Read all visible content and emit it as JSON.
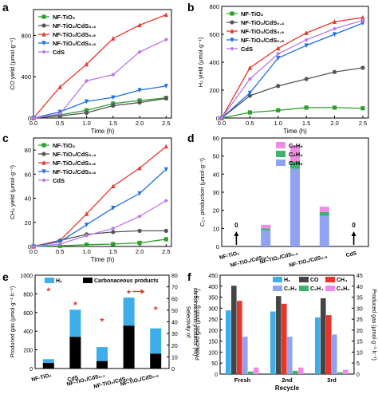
{
  "chart_data": [
    {
      "panel": "a",
      "type": "line",
      "xlabel": "Time (h)",
      "ylabel": "CO yield (μmol·g⁻¹)",
      "xlim": [
        0,
        2.6
      ],
      "ylim": [
        0,
        1050
      ],
      "xticks": [
        "0.0",
        "0.5",
        "1.0",
        "1.5",
        "2.0",
        "2.5"
      ],
      "yticks": [
        "0",
        "400",
        "800"
      ],
      "legend_position": "top-left",
      "x": [
        0,
        0.5,
        1.0,
        1.5,
        2.0,
        2.5
      ],
      "series": [
        {
          "name": "NF-TiO₂",
          "color": "#2ca02c",
          "values": [
            0,
            30,
            75,
            140,
            170,
            195
          ]
        },
        {
          "name": "NF-TiO₂/CdS₀.₄",
          "color": "#555555",
          "values": [
            0,
            20,
            50,
            120,
            150,
            190
          ]
        },
        {
          "name": "NF-TiO₂/CdS₀.₆",
          "color": "#e8352b",
          "values": [
            0,
            300,
            520,
            770,
            900,
            1000
          ]
        },
        {
          "name": "NF-TiO₂/CdS₀.₈",
          "color": "#1f6fe0",
          "values": [
            0,
            60,
            160,
            200,
            270,
            310
          ]
        },
        {
          "name": "CdS",
          "color": "#b77ae8",
          "values": [
            0,
            40,
            360,
            420,
            640,
            760
          ]
        }
      ]
    },
    {
      "panel": "b",
      "type": "line",
      "xlabel": "Time (h)",
      "ylabel": "H₂ yield (μmol·g⁻¹)",
      "xlim": [
        0,
        2.6
      ],
      "ylim": [
        0,
        800
      ],
      "xticks": [
        "0.0",
        "0.5",
        "1.0",
        "1.5",
        "2.0",
        "2.5"
      ],
      "yticks": [
        "0",
        "200",
        "400",
        "600",
        "800"
      ],
      "legend_position": "top-left",
      "x": [
        0,
        0.5,
        1.0,
        1.5,
        2.0,
        2.5
      ],
      "series": [
        {
          "name": "NF-TiO₂",
          "color": "#2ca02c",
          "values": [
            0,
            40,
            55,
            75,
            75,
            70
          ]
        },
        {
          "name": "NF-TiO₂/CdS₀.₄",
          "color": "#555555",
          "values": [
            0,
            160,
            230,
            280,
            330,
            360
          ]
        },
        {
          "name": "NF-TiO₂/CdS₀.₆",
          "color": "#e8352b",
          "values": [
            0,
            360,
            500,
            610,
            690,
            720
          ]
        },
        {
          "name": "NF-TiO₂/CdS₀.₈",
          "color": "#1f6fe0",
          "values": [
            0,
            180,
            430,
            520,
            600,
            680
          ]
        },
        {
          "name": "CdS",
          "color": "#b77ae8",
          "values": [
            0,
            280,
            460,
            560,
            640,
            700
          ]
        }
      ]
    },
    {
      "panel": "c",
      "type": "line",
      "xlabel": "Time (h)",
      "ylabel": "CH₄ yield (μmol·g⁻¹)",
      "xlim": [
        0,
        2.6
      ],
      "ylim": [
        0,
        90
      ],
      "xticks": [
        "0.0",
        "0.5",
        "1.0",
        "1.5",
        "2.0",
        "2.5"
      ],
      "yticks": [
        "0",
        "20",
        "40",
        "60",
        "80"
      ],
      "legend_position": "top-left",
      "x": [
        0,
        0.5,
        1.0,
        1.5,
        2.0,
        2.5
      ],
      "series": [
        {
          "name": "NF-TiO₂",
          "color": "#2ca02c",
          "values": [
            0,
            0.5,
            1.5,
            2,
            3,
            6
          ]
        },
        {
          "name": "NF-TiO₂/CdS₀.₄",
          "color": "#555555",
          "values": [
            0,
            5,
            10,
            12,
            13,
            13
          ]
        },
        {
          "name": "NF-TiO₂/CdS₀.₆",
          "color": "#e8352b",
          "values": [
            0,
            5,
            27,
            50,
            65,
            83
          ]
        },
        {
          "name": "NF-TiO₂/CdS₀.₈",
          "color": "#1f6fe0",
          "values": [
            0,
            4,
            18,
            32,
            44,
            64
          ]
        },
        {
          "name": "CdS",
          "color": "#b77ae8",
          "values": [
            0,
            2,
            9,
            15,
            25,
            38
          ]
        }
      ]
    },
    {
      "panel": "d",
      "type": "bar",
      "ylabel": "C₂₊ production (μmol·g⁻¹)",
      "ylim": [
        0,
        60
      ],
      "yticks": [
        "0",
        "10",
        "20",
        "30",
        "40",
        "50",
        "60"
      ],
      "categories": [
        "NF-TiO₂",
        "NF-TiO₂/CdS₀.₄",
        "NF-TiO₂/CdS₀.₆",
        "NF-TiO₂/CdS₀.₈",
        "CdS"
      ],
      "series": [
        {
          "name": "C₂H₆",
          "color": "#8fa3f2",
          "values": [
            0,
            9,
            43,
            17,
            0
          ]
        },
        {
          "name": "C₂H₄",
          "color": "#3db36a",
          "values": [
            0,
            1,
            4,
            2,
            0
          ]
        },
        {
          "name": "C₃H₆",
          "color": "#f08ae6",
          "values": [
            0,
            2,
            9,
            3,
            0
          ]
        }
      ],
      "zero_markers": [
        "0",
        "0"
      ],
      "zero_categories": [
        0,
        4
      ]
    },
    {
      "panel": "e",
      "type": "bar",
      "ylabel": "Produced gas (μmol·g⁻¹·h⁻¹)",
      "y2label": "Selectivity of carbonaceous products (%)",
      "ylim": [
        0,
        1000
      ],
      "y2lim": [
        0,
        80
      ],
      "yticks": [
        "0",
        "200",
        "400",
        "600",
        "800",
        "1000"
      ],
      "y2ticks": [
        "0",
        "10",
        "20",
        "30",
        "40",
        "50",
        "60",
        "70",
        "80"
      ],
      "categories": [
        "NF-TiO₂",
        "CdS",
        "NF-TiO₂/CdS₀.₄",
        "NF-TiO₂/CdS₀.₆",
        "NF-TiO₂/CdS₀.₈"
      ],
      "series": [
        {
          "name": "Carbonaceous products",
          "color": "#000000",
          "values": [
            60,
            340,
            80,
            460,
            160
          ]
        },
        {
          "name": "H₂",
          "color": "#3daee9",
          "values": [
            40,
            290,
            150,
            300,
            270
          ]
        }
      ],
      "selectivity": {
        "color": "#e8352b",
        "values": [
          68,
          56,
          42,
          66,
          52
        ]
      }
    },
    {
      "panel": "f",
      "type": "bar",
      "xlabel": "Recycle",
      "ylabel": "Produced gas (μmol·g⁻¹·h⁻¹)",
      "ylim": [
        0,
        450
      ],
      "y2lim": [
        0,
        45
      ],
      "yticks": [
        "0",
        "50",
        "100",
        "150",
        "200",
        "250",
        "300",
        "350",
        "400",
        "450"
      ],
      "y2ticks": [
        "0",
        "5",
        "10",
        "15",
        "20",
        "25",
        "30",
        "35",
        "40",
        "45"
      ],
      "categories": [
        "Fresh",
        "2nd",
        "3rd"
      ],
      "series": [
        {
          "name": "H₂",
          "color": "#3daee9",
          "axis": "left",
          "values": [
            290,
            285,
            258
          ]
        },
        {
          "name": "CO",
          "color": "#454545",
          "axis": "left",
          "values": [
            402,
            355,
            345
          ]
        },
        {
          "name": "CH₄",
          "color": "#e8352b",
          "axis": "left",
          "values": [
            333,
            320,
            268
          ]
        },
        {
          "name": "C₂H₆",
          "color": "#8fa3f2",
          "axis": "right",
          "values": [
            17,
            17,
            18
          ]
        },
        {
          "name": "C₂H₄",
          "color": "#3db36a",
          "axis": "right",
          "values": [
            1.2,
            1.5,
            0.8
          ]
        },
        {
          "name": "C₃H₆",
          "color": "#f08ae6",
          "axis": "right",
          "values": [
            3,
            3,
            2
          ]
        }
      ]
    }
  ]
}
